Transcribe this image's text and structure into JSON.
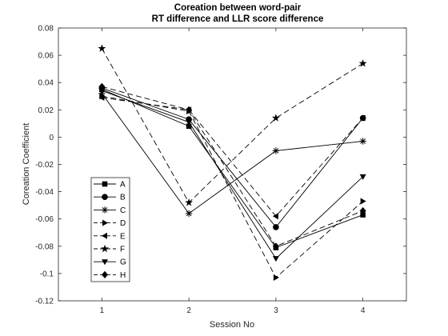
{
  "chart_data": {
    "type": "line",
    "title": "Coreation between word-pair",
    "subtitle": "RT difference and LLR score difference",
    "xlabel": "Session No",
    "ylabel": "Coreation Coefficient",
    "x": [
      1,
      2,
      3,
      4
    ],
    "xlim": [
      0.5,
      4.5
    ],
    "ylim": [
      -0.12,
      0.08
    ],
    "xticks": [
      "1",
      "2",
      "3",
      "4"
    ],
    "yticks": [
      "0.08",
      "0.06",
      "0.04",
      "0.02",
      "0",
      "-0.02",
      "-0.04",
      "-0.06",
      "-0.08",
      "-0.1",
      "-0.12"
    ],
    "grid": false,
    "legend_position": "lower-left",
    "series": [
      {
        "name": "A",
        "marker": "square",
        "linestyle": "solid",
        "values": [
          0.035,
          0.008,
          -0.081,
          -0.057
        ]
      },
      {
        "name": "B",
        "marker": "circle",
        "linestyle": "solid",
        "values": [
          0.036,
          0.013,
          -0.066,
          0.014
        ]
      },
      {
        "name": "C",
        "marker": "asterisk",
        "linestyle": "solid",
        "values": [
          0.032,
          -0.056,
          -0.01,
          -0.003
        ]
      },
      {
        "name": "D",
        "marker": "triangle-right",
        "linestyle": "dashed",
        "values": [
          0.03,
          0.019,
          -0.103,
          -0.047
        ]
      },
      {
        "name": "E",
        "marker": "triangle-left",
        "linestyle": "dashed",
        "values": [
          0.029,
          0.02,
          -0.058,
          0.014
        ]
      },
      {
        "name": "F",
        "marker": "pentagram",
        "linestyle": "dashed",
        "values": [
          0.065,
          -0.048,
          0.014,
          0.054
        ]
      },
      {
        "name": "G",
        "marker": "triangle-down",
        "linestyle": "solid",
        "values": [
          0.034,
          0.011,
          -0.089,
          -0.029
        ]
      },
      {
        "name": "H",
        "marker": "diamond",
        "linestyle": "dashed",
        "values": [
          0.037,
          0.02,
          -0.08,
          -0.054
        ]
      }
    ]
  }
}
